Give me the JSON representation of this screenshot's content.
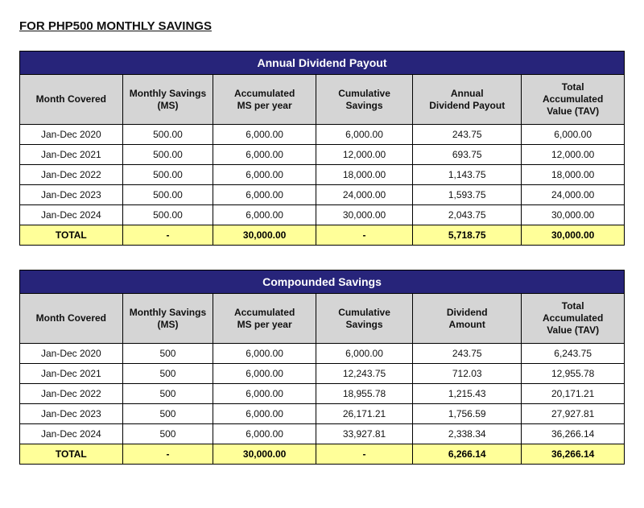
{
  "page": {
    "title": "FOR PHP500 MONTHLY SAVINGS"
  },
  "colors": {
    "band_bg": "#27247a",
    "band_text": "#ffffff",
    "header_bg": "#d5d5d5",
    "total_bg": "#ffff99",
    "border": "#000000",
    "row_bg": "#ffffff"
  },
  "tables": [
    {
      "caption": "Annual Dividend Payout",
      "columns": [
        "Month Covered",
        "Monthly Savings\n(MS)",
        "Accumulated\nMS per year",
        "Cumulative\nSavings",
        "Annual\nDividend Payout",
        "Total\nAccumulated\nValue (TAV)"
      ],
      "rows": [
        [
          "Jan-Dec 2020",
          "500.00",
          "6,000.00",
          "6,000.00",
          "243.75",
          "6,000.00"
        ],
        [
          "Jan-Dec 2021",
          "500.00",
          "6,000.00",
          "12,000.00",
          "693.75",
          "12,000.00"
        ],
        [
          "Jan-Dec 2022",
          "500.00",
          "6,000.00",
          "18,000.00",
          "1,143.75",
          "18,000.00"
        ],
        [
          "Jan-Dec 2023",
          "500.00",
          "6,000.00",
          "24,000.00",
          "1,593.75",
          "24,000.00"
        ],
        [
          "Jan-Dec 2024",
          "500.00",
          "6,000.00",
          "30,000.00",
          "2,043.75",
          "30,000.00"
        ]
      ],
      "total": [
        "TOTAL",
        "-",
        "30,000.00",
        "-",
        "5,718.75",
        "30,000.00"
      ]
    },
    {
      "caption": "Compounded Savings",
      "columns": [
        "Month Covered",
        "Monthly Savings\n(MS)",
        "Accumulated\nMS per year",
        "Cumulative\nSavings",
        "Dividend\nAmount",
        "Total\nAccumulated\nValue (TAV)"
      ],
      "rows": [
        [
          "Jan-Dec 2020",
          "500",
          "6,000.00",
          "6,000.00",
          "243.75",
          "6,243.75"
        ],
        [
          "Jan-Dec 2021",
          "500",
          "6,000.00",
          "12,243.75",
          "712.03",
          "12,955.78"
        ],
        [
          "Jan-Dec 2022",
          "500",
          "6,000.00",
          "18,955.78",
          "1,215.43",
          "20,171.21"
        ],
        [
          "Jan-Dec 2023",
          "500",
          "6,000.00",
          "26,171.21",
          "1,756.59",
          "27,927.81"
        ],
        [
          "Jan-Dec 2024",
          "500",
          "6,000.00",
          "33,927.81",
          "2,338.34",
          "36,266.14"
        ]
      ],
      "total": [
        "TOTAL",
        "-",
        "30,000.00",
        "-",
        "6,266.14",
        "36,266.14"
      ]
    }
  ]
}
